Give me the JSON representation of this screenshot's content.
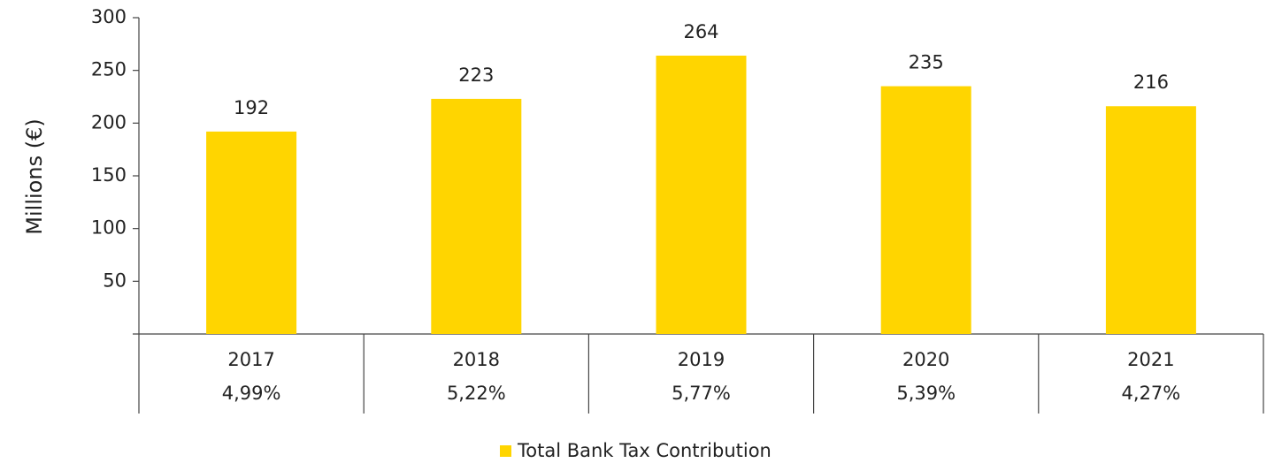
{
  "chart_data": {
    "type": "bar",
    "ylabel": "Millions (€)",
    "categories": [
      "2017",
      "2018",
      "2019",
      "2020",
      "2021"
    ],
    "subcategories": [
      "4,99%",
      "5,22%",
      "5,77%",
      "5,39%",
      "4,27%"
    ],
    "series": [
      {
        "name": "Total Bank Tax Contribution",
        "color": "#ffd500",
        "values": [
          192,
          223,
          264,
          235,
          216
        ]
      }
    ],
    "ylim": [
      0,
      300
    ],
    "yticks": [
      50,
      100,
      150,
      200,
      250,
      300
    ],
    "legend": "bottom"
  }
}
